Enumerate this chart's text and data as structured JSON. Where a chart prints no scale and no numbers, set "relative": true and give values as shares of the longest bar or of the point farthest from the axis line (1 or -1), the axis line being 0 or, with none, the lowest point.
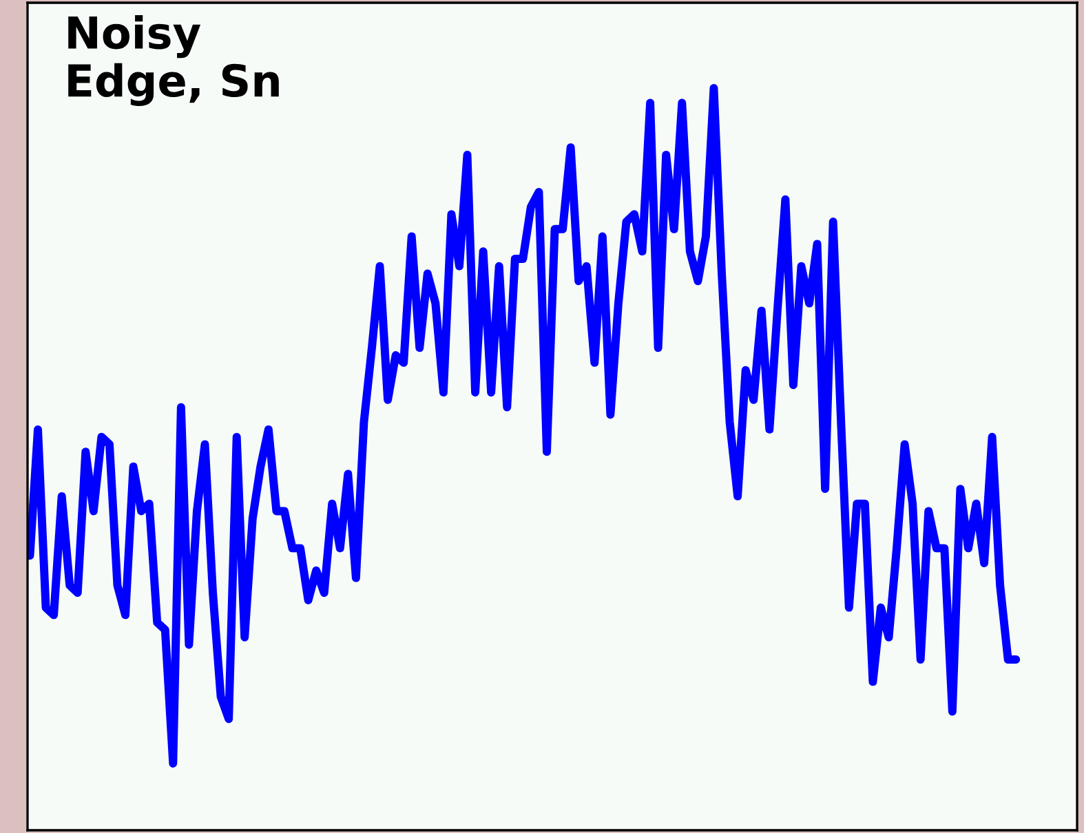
{
  "chart_data": {
    "type": "line",
    "title": "Noisy\nEdge, Sn",
    "relative": true,
    "legend": false,
    "marker": "none",
    "line_style": "solid",
    "categories": [
      null,
      null,
      null,
      null,
      null,
      null,
      null,
      null,
      null,
      null,
      null,
      null,
      null,
      null,
      null,
      null,
      null,
      null,
      null,
      null,
      null,
      null,
      null,
      null,
      null,
      null,
      null,
      null,
      null,
      null,
      null,
      null,
      null,
      null,
      null,
      null,
      null,
      null,
      null,
      null,
      null,
      null,
      null,
      null,
      null,
      null,
      null,
      null,
      null,
      null,
      null,
      null,
      null,
      null,
      null,
      null,
      null,
      null,
      null,
      null,
      null,
      null,
      null,
      null,
      null,
      null,
      null,
      null,
      null,
      null,
      null,
      null,
      null,
      null,
      null,
      null,
      null,
      null,
      null,
      null,
      null,
      null,
      null,
      null,
      null,
      null,
      null,
      null,
      null,
      null,
      null,
      null,
      null,
      null,
      null,
      null,
      null,
      null,
      null,
      null,
      null,
      null,
      null,
      null,
      null,
      null,
      null,
      null,
      null,
      null,
      null,
      null,
      null,
      null,
      null,
      null,
      null,
      null,
      null,
      null,
      null,
      null,
      null,
      null,
      null
    ],
    "series": [
      {
        "color": "#0000ff",
        "values": [
          0.37,
          0.54,
          0.3,
          0.29,
          0.45,
          0.33,
          0.32,
          0.51,
          0.43,
          0.53,
          0.52,
          0.33,
          0.29,
          0.49,
          0.43,
          0.44,
          0.28,
          0.27,
          0.09,
          0.57,
          0.25,
          0.43,
          0.52,
          0.32,
          0.18,
          0.15,
          0.53,
          0.26,
          0.42,
          0.49,
          0.54,
          0.43,
          0.43,
          0.38,
          0.38,
          0.31,
          0.35,
          0.32,
          0.44,
          0.38,
          0.48,
          0.34,
          0.55,
          0.65,
          0.76,
          0.58,
          0.64,
          0.63,
          0.8,
          0.65,
          0.75,
          0.71,
          0.59,
          0.83,
          0.76,
          0.91,
          0.59,
          0.78,
          0.59,
          0.76,
          0.57,
          0.77,
          0.77,
          0.84,
          0.86,
          0.51,
          0.81,
          0.81,
          0.92,
          0.74,
          0.76,
          0.63,
          0.8,
          0.56,
          0.71,
          0.82,
          0.83,
          0.78,
          0.98,
          0.65,
          0.91,
          0.81,
          0.98,
          0.78,
          0.74,
          0.8,
          1,
          0.75,
          0.55,
          0.45,
          0.62,
          0.58,
          0.7,
          0.54,
          0.7,
          0.85,
          0.6,
          0.76,
          0.71,
          0.79,
          0.46,
          0.82,
          0.55,
          0.3,
          0.44,
          0.44,
          0.2,
          0.3,
          0.26,
          0.38,
          0.52,
          0.44,
          0.23,
          0.43,
          0.38,
          0.38,
          0.16,
          0.46,
          0.38,
          0.44,
          0.36,
          0.53,
          0.33,
          0.23,
          0.23
        ]
      }
    ]
  }
}
